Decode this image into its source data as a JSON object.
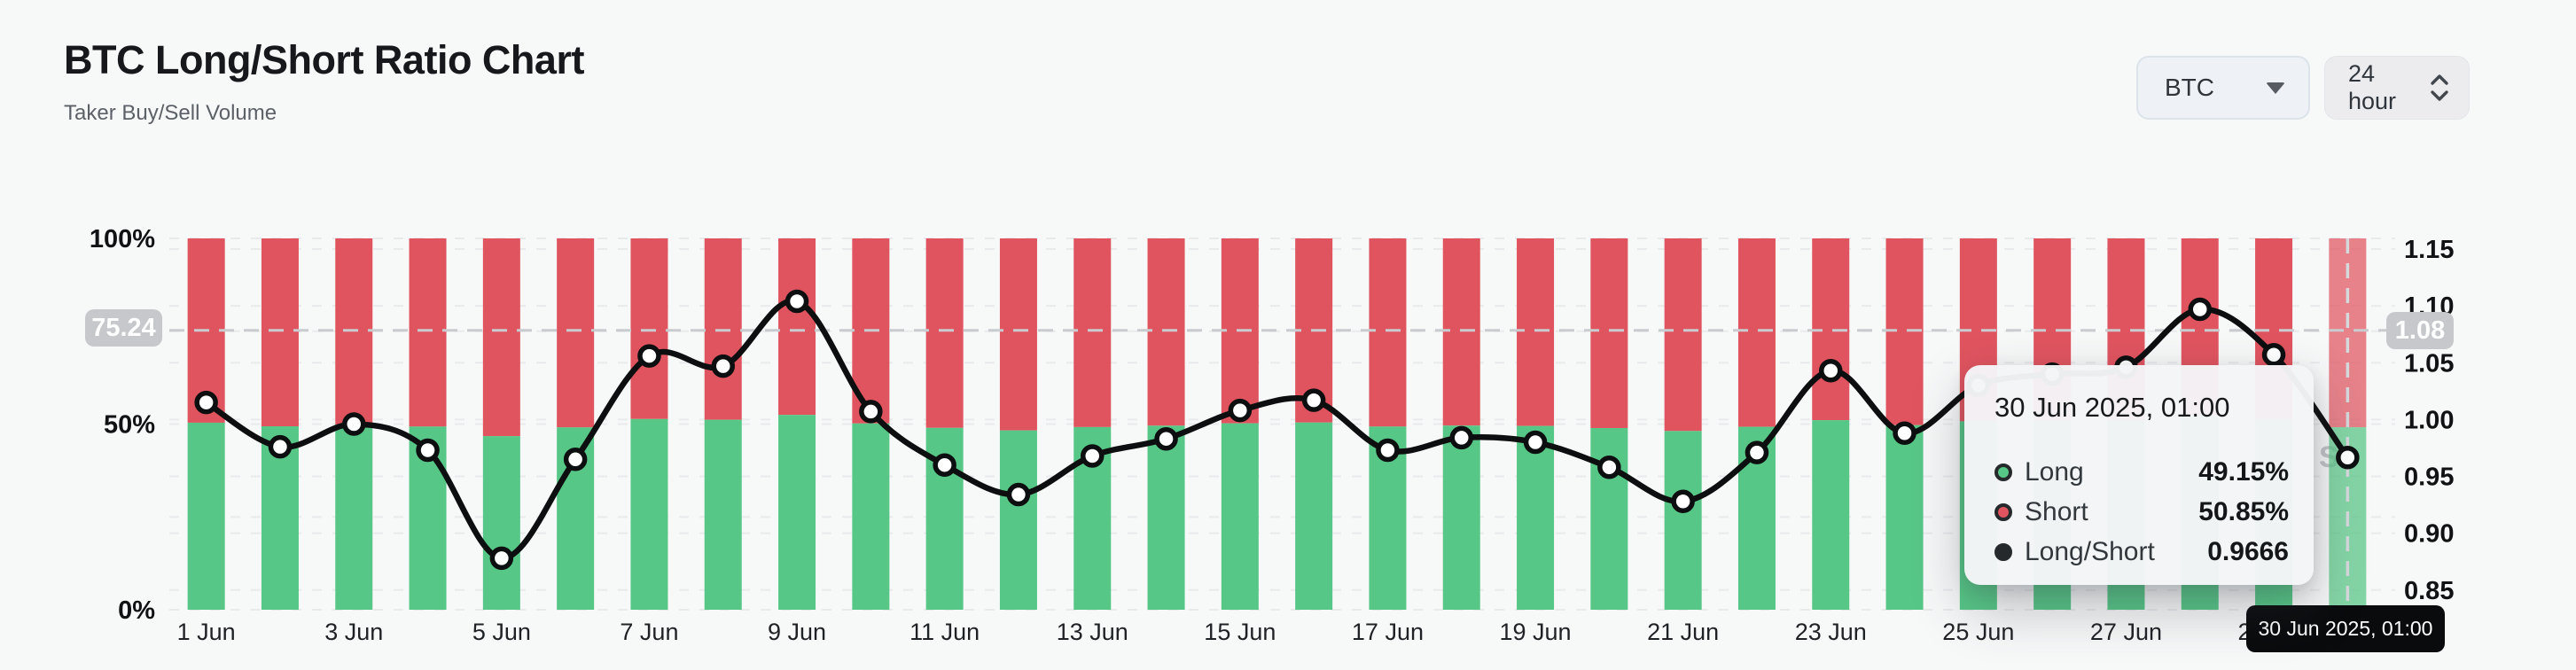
{
  "header": {
    "title": "BTC Long/Short Ratio Chart",
    "subtitle": "Taker Buy/Sell Volume"
  },
  "controls": {
    "symbol_select": {
      "value": "BTC"
    },
    "interval_select": {
      "value": "24 hour"
    }
  },
  "tooltip": {
    "title": "30 Jun 2025, 01:00",
    "rows": [
      {
        "label": "Long",
        "value": "49.15%",
        "color": "#57c787"
      },
      {
        "label": "Short",
        "value": "50.85%",
        "color": "#e0545f"
      },
      {
        "label": "Long/Short",
        "value": "0.9666",
        "color": "#26292c"
      }
    ]
  },
  "crosshair": {
    "left_axis_value": "75.24",
    "right_axis_value": "1.08",
    "hover_percent": 75.24,
    "x_axis_label": "30 Jun 2025, 01:00",
    "hover_index": 29
  },
  "watermark": "S",
  "chart_data": {
    "type": "bar",
    "subtype": "stacked-percent-bars-with-ratio-line",
    "title": "BTC Long/Short Ratio Chart",
    "categories": [
      "1 Jun",
      "2 Jun",
      "3 Jun",
      "4 Jun",
      "5 Jun",
      "6 Jun",
      "7 Jun",
      "8 Jun",
      "9 Jun",
      "10 Jun",
      "11 Jun",
      "12 Jun",
      "13 Jun",
      "14 Jun",
      "15 Jun",
      "16 Jun",
      "17 Jun",
      "18 Jun",
      "19 Jun",
      "20 Jun",
      "21 Jun",
      "22 Jun",
      "23 Jun",
      "24 Jun",
      "25 Jun",
      "26 Jun",
      "27 Jun",
      "28 Jun",
      "29 Jun",
      "30 Jun"
    ],
    "series": [
      {
        "name": "Long",
        "type": "bar",
        "unit": "%",
        "color": "#57c787",
        "values": [
          50.37,
          49.39,
          49.9,
          49.32,
          46.75,
          49.11,
          51.36,
          51.15,
          52.47,
          50.17,
          48.98,
          48.29,
          49.19,
          49.57,
          50.2,
          50.42,
          49.32,
          49.6,
          49.49,
          48.93,
          48.13,
          49.26,
          51.05,
          49.7,
          50.74,
          50.98,
          51.12,
          52.31,
          51.39,
          49.15
        ]
      },
      {
        "name": "Short",
        "type": "bar",
        "unit": "%",
        "color": "#e0545f",
        "values": [
          49.63,
          50.61,
          50.1,
          50.68,
          53.25,
          50.89,
          48.64,
          48.85,
          47.53,
          49.83,
          51.02,
          51.71,
          50.81,
          50.43,
          49.8,
          49.58,
          50.68,
          50.4,
          50.51,
          51.07,
          51.87,
          50.74,
          48.95,
          50.3,
          49.26,
          49.02,
          48.88,
          47.69,
          48.61,
          50.85
        ]
      },
      {
        "name": "Long/Short",
        "type": "line",
        "color": "#0d0e0f",
        "values": [
          1.015,
          0.976,
          0.996,
          0.973,
          0.878,
          0.965,
          1.056,
          1.047,
          1.104,
          1.007,
          0.96,
          0.934,
          0.968,
          0.983,
          1.008,
          1.017,
          0.973,
          0.984,
          0.98,
          0.958,
          0.928,
          0.971,
          1.043,
          0.988,
          1.03,
          1.04,
          1.046,
          1.097,
          1.057,
          0.9666
        ]
      }
    ],
    "left_axis": {
      "ticks": [
        {
          "label": "100%",
          "value": 100
        },
        {
          "label": "50%",
          "value": 50
        },
        {
          "label": "0%",
          "value": 0
        }
      ],
      "range": [
        0,
        100
      ],
      "gridline_values": [
        0,
        25,
        50,
        75,
        100
      ]
    },
    "right_axis": {
      "ticks": [
        "1.15",
        "1.10",
        "1.05",
        "1.00",
        "0.95",
        "0.90",
        "0.85"
      ],
      "range": [
        0.85,
        1.15
      ]
    },
    "x_tick_step": 2,
    "grid": "dashed",
    "legend": "none",
    "highlighted_bar_index": 29,
    "colors": {
      "background": "#f7f8f8",
      "gridline": "#e9eaec",
      "crosshair": "#c9cccf",
      "point_fill": "#ffffff",
      "watermark": "#c3c5c8",
      "x_label": "#1f2225",
      "axis_label": "#101214"
    }
  }
}
